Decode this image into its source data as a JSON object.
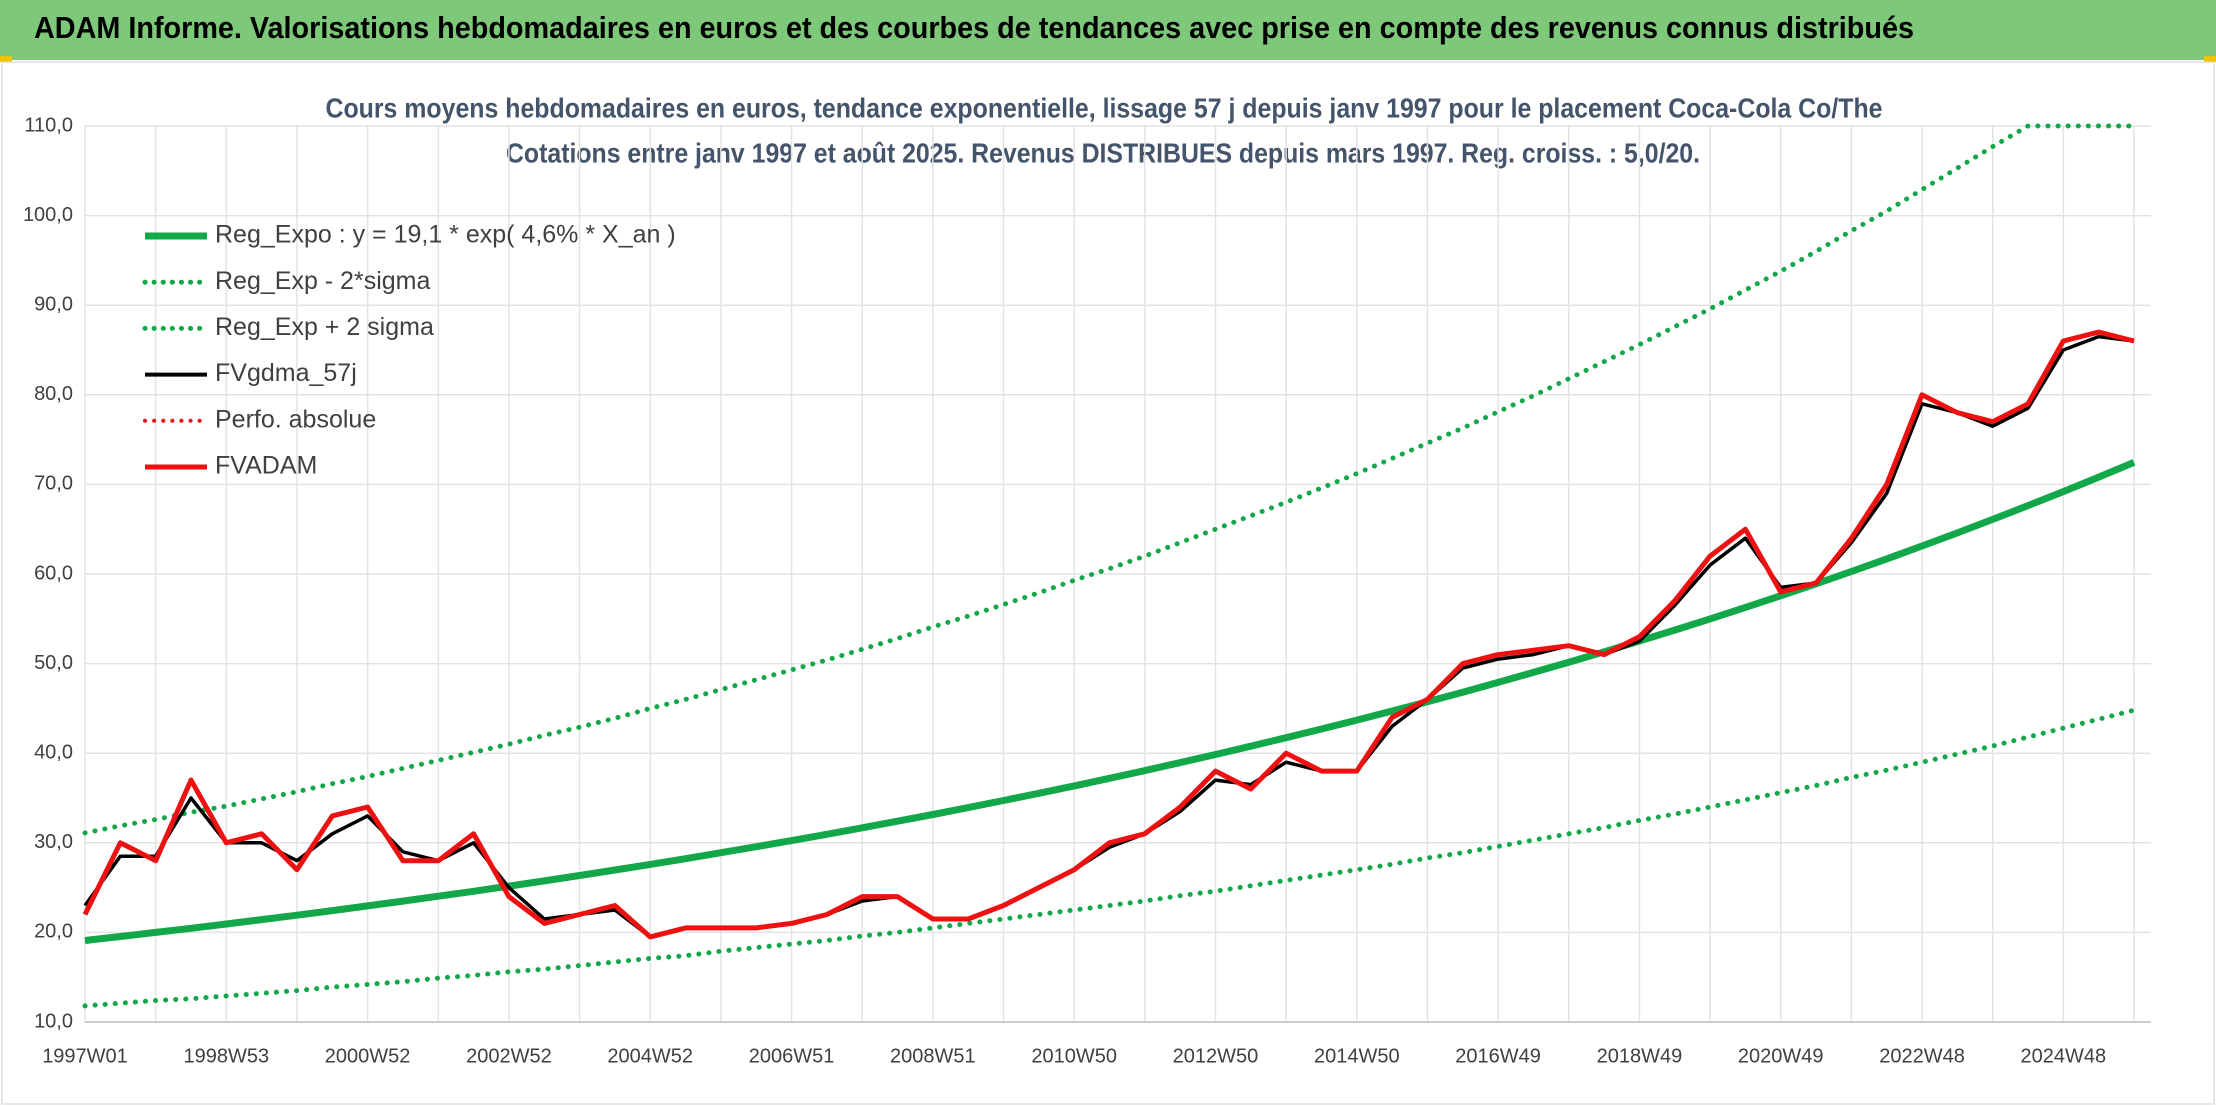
{
  "header": {
    "title": "ADAM Informe. Valorisations hebdomadaires en euros et des courbes de tendances avec prise en compte des revenus connus distribués"
  },
  "chart_data": {
    "type": "line",
    "title": [
      "Cours moyens hebdomadaires en euros, tendance exponentielle, lissage 57 j depuis janv 1997 pour le placement Coca-Cola Co/The",
      "Cotations entre janv 1997 et août 2025. Revenus DISTRIBUES depuis mars 1997. Reg. croiss. : 5,0/20."
    ],
    "categories": [
      "1997W01",
      null,
      null,
      null,
      "1998W53",
      null,
      null,
      null,
      "2000W52",
      null,
      null,
      null,
      "2002W52",
      null,
      null,
      null,
      "2004W52",
      null,
      null,
      null,
      "2006W51",
      null,
      null,
      null,
      "2008W51",
      null,
      null,
      null,
      "2010W50",
      null,
      null,
      null,
      "2012W50",
      null,
      null,
      null,
      "2014W50",
      null,
      null,
      null,
      "2016W49",
      null,
      null,
      null,
      "2018W49",
      null,
      null,
      null,
      "2020W49",
      null,
      null,
      null,
      "2022W48",
      null,
      null,
      null,
      "2024W48",
      null,
      null
    ],
    "ylim": [
      10,
      110
    ],
    "yticks": [
      {
        "value": 10,
        "label": "10,0"
      },
      {
        "value": 20,
        "label": "20,0"
      },
      {
        "value": 30,
        "label": "30,0"
      },
      {
        "value": 40,
        "label": "40,0"
      },
      {
        "value": 50,
        "label": "50,0"
      },
      {
        "value": 60,
        "label": "60,0"
      },
      {
        "value": 70,
        "label": "70,0"
      },
      {
        "value": 80,
        "label": "80,0"
      },
      {
        "value": 90,
        "label": "90,0"
      },
      {
        "value": 100,
        "label": "100,0"
      },
      {
        "value": 110,
        "label": "110,0"
      }
    ],
    "grid": true,
    "legend": "top-left",
    "series": [
      {
        "name": "Reg_Expo : y = 19,1 * exp( 4,6% *  X_an )",
        "color": "#12a84a",
        "style": "solid",
        "values": [
          19.1,
          19.54,
          20.0,
          20.46,
          20.94,
          21.43,
          21.92,
          22.43,
          22.96,
          23.49,
          24.04,
          24.59,
          25.17,
          25.75,
          26.35,
          26.96,
          27.59,
          28.23,
          28.89,
          29.56,
          30.25,
          30.95,
          31.67,
          32.41,
          33.16,
          33.93,
          34.72,
          35.53,
          36.35,
          37.2,
          38.06,
          38.95,
          39.85,
          40.78,
          41.73,
          42.7,
          43.69,
          44.71,
          45.75,
          46.81,
          47.9,
          49.02,
          50.16,
          51.32,
          52.52,
          53.74,
          54.99,
          56.27,
          57.57,
          58.91,
          60.28,
          61.68,
          63.12,
          64.59,
          66.09,
          67.63,
          69.2,
          70.81,
          72.45
        ]
      },
      {
        "name": "Reg_Exp - 2*sigma",
        "color": "#12a84a",
        "style": "dotted",
        "values": [
          11.8,
          12.1,
          12.4,
          12.6,
          12.9,
          13.2,
          13.5,
          13.9,
          14.2,
          14.5,
          14.9,
          15.2,
          15.6,
          15.9,
          16.3,
          16.7,
          17.1,
          17.4,
          17.9,
          18.3,
          18.7,
          19.1,
          19.6,
          20.0,
          20.5,
          21.0,
          21.5,
          22.0,
          22.5,
          23.0,
          23.5,
          24.1,
          24.6,
          25.2,
          25.8,
          26.4,
          27.0,
          27.6,
          28.3,
          28.9,
          29.6,
          30.3,
          31.0,
          31.7,
          32.5,
          33.2,
          34.0,
          34.8,
          35.6,
          36.4,
          37.3,
          38.1,
          39.0,
          39.9,
          40.8,
          41.8,
          42.8,
          43.8,
          44.8
        ]
      },
      {
        "name": "Reg_Exp + 2 sigma",
        "color": "#12a84a",
        "style": "dotted",
        "values": [
          31.1,
          31.9,
          32.6,
          33.4,
          34.1,
          34.9,
          35.7,
          36.6,
          37.4,
          38.3,
          39.2,
          40.1,
          41.0,
          42.0,
          42.9,
          43.9,
          45.0,
          46.0,
          47.1,
          48.2,
          49.3,
          50.4,
          51.6,
          52.8,
          54.1,
          55.3,
          56.6,
          57.9,
          59.3,
          60.6,
          62.0,
          63.5,
          65.0,
          66.5,
          68.0,
          69.6,
          71.2,
          72.9,
          74.6,
          76.3,
          78.1,
          79.9,
          81.8,
          83.7,
          85.6,
          87.6,
          89.6,
          91.7,
          93.8,
          96.0,
          98.3,
          100.5,
          102.9,
          105.3,
          107.7,
          110,
          110,
          110,
          110
        ]
      },
      {
        "name": "FVgdma_57j",
        "color": "#000000",
        "style": "solid",
        "values": [
          23,
          28.5,
          28.5,
          35,
          30,
          30,
          28,
          31,
          33,
          29,
          28,
          30,
          25,
          21.5,
          22,
          22.5,
          19.5,
          20.5,
          20.5,
          20.5,
          21,
          22,
          23.5,
          24,
          21.5,
          21.5,
          23,
          25,
          27,
          29.5,
          31,
          33.5,
          37,
          36.5,
          39,
          38,
          38,
          43,
          46,
          49.5,
          50.5,
          51,
          52,
          51,
          52.5,
          56.5,
          61,
          64,
          58.5,
          59,
          63.5,
          69,
          79,
          78,
          76.5,
          78.5,
          85,
          86.5,
          86
        ]
      },
      {
        "name": "Perfo. absolue",
        "color": "#e8141b",
        "style": "dotted"
      },
      {
        "name": "FVADAM",
        "color": "#ee1111",
        "style": "solid",
        "values": [
          22,
          30,
          28,
          37,
          30,
          31,
          27,
          33,
          34,
          28,
          28,
          31,
          24,
          21,
          22,
          23,
          19.5,
          20.5,
          20.5,
          20.5,
          21,
          22,
          24,
          24,
          21.5,
          21.5,
          23,
          25,
          27,
          30,
          31,
          34,
          38,
          36,
          40,
          38,
          38,
          44,
          46,
          50,
          51,
          51.5,
          52,
          51,
          53,
          57,
          62,
          65,
          58,
          59,
          64,
          70,
          80,
          78,
          77,
          79,
          86,
          87,
          86
        ]
      }
    ]
  }
}
